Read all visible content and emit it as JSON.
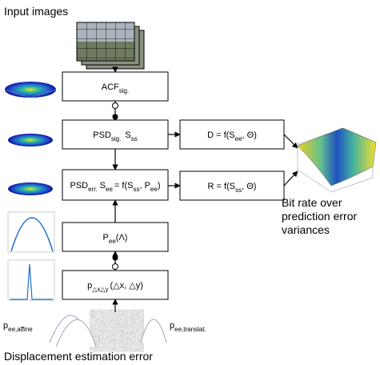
{
  "header": {
    "title": "Input images"
  },
  "nodes": [
    {
      "parts": [
        "ACF",
        "sig."
      ]
    },
    {
      "parts": [
        "PSD",
        "sig.",
        "S",
        "ss"
      ]
    },
    {
      "parts": [
        "PSD",
        "err.",
        "S",
        "ee",
        "= f(S",
        "ss",
        ", P",
        "ee",
        ")"
      ]
    },
    {
      "parts": [
        "P",
        "ee",
        "(Λ)"
      ]
    },
    {
      "parts": [
        "p",
        "△x△y",
        "(△x, △y)"
      ]
    },
    {
      "parts": [
        "D = f(S",
        "ee",
        ", Θ)"
      ]
    },
    {
      "parts": [
        "R = f(S",
        "ss",
        ", Θ)"
      ]
    }
  ],
  "result": {
    "lines": [
      "Bit rate over",
      "prediction error",
      "variances"
    ]
  },
  "labels": {
    "affine": {
      "parts": [
        "p",
        "ee,affine"
      ]
    },
    "translat": {
      "parts": [
        "p",
        "ee,translat."
      ]
    },
    "footer": "Displacement estimation error"
  }
}
